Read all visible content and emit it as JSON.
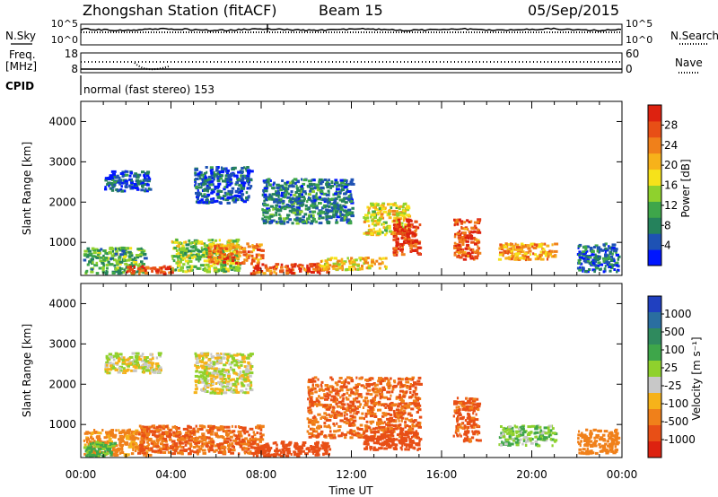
{
  "header": {
    "station": "Zhongshan Station (fitACF)",
    "beam": "Beam 15",
    "date": "05/Sep/2015"
  },
  "side_labels": {
    "nsky": "N.Sky",
    "nsearch": "N.Search",
    "freq": "Freq.",
    "freq_unit": "[MHz]",
    "nave": "Nave",
    "cpid": "CPID",
    "mode": "normal (fast stereo) 153"
  },
  "aux_ticks": {
    "noise_left": [
      "10^5",
      "10^0"
    ],
    "noise_right": [
      "10^5",
      "10^0"
    ],
    "freq_left": [
      "18",
      "8"
    ],
    "nave_right": [
      "60",
      "0"
    ]
  },
  "x_axis": {
    "label": "Time UT",
    "ticks": [
      "00:00",
      "04:00",
      "08:00",
      "12:00",
      "16:00",
      "20:00",
      "00:00"
    ]
  },
  "chart_data": [
    {
      "type": "heatmap",
      "quantity": "Power",
      "ylabel": "Slant Range [km]",
      "y_ticks": [
        "1000",
        "2000",
        "3000",
        "4000"
      ],
      "ylim": [
        180,
        4500
      ],
      "xlim_hours": [
        0,
        24
      ],
      "colorbar_label": "Power [dB]",
      "colorbar_ticks": [
        "4",
        "8",
        "12",
        "16",
        "20",
        "24",
        "28"
      ],
      "colorbar_colors": [
        "#0016ff",
        "#1e52b4",
        "#25825c",
        "#3ea64a",
        "#8fd12d",
        "#f6e21a",
        "#f7b21a",
        "#f0801a",
        "#e84f16",
        "#dd2210"
      ],
      "regions": [
        {
          "t": [
            0.1,
            2.8
          ],
          "r": [
            250,
            900
          ],
          "level": 0.35
        },
        {
          "t": [
            2.0,
            4.0
          ],
          "r": [
            250,
            450
          ],
          "level": 0.9
        },
        {
          "t": [
            4.0,
            7.0
          ],
          "r": [
            300,
            1100
          ],
          "level": 0.45
        },
        {
          "t": [
            5.6,
            8.0
          ],
          "r": [
            500,
            1000
          ],
          "level": 0.75
        },
        {
          "t": [
            7.5,
            11.0
          ],
          "r": [
            250,
            500
          ],
          "level": 0.85
        },
        {
          "t": [
            10.5,
            13.5
          ],
          "r": [
            350,
            650
          ],
          "level": 0.6
        },
        {
          "t": [
            12.5,
            14.5
          ],
          "r": [
            1200,
            2000
          ],
          "level": 0.55
        },
        {
          "t": [
            13.8,
            15.0
          ],
          "r": [
            700,
            1600
          ],
          "level": 0.9
        },
        {
          "t": [
            16.5,
            17.6
          ],
          "r": [
            600,
            1600
          ],
          "level": 0.85
        },
        {
          "t": [
            18.5,
            21.0
          ],
          "r": [
            600,
            1000
          ],
          "level": 0.7
        },
        {
          "t": [
            1.0,
            3.0
          ],
          "r": [
            2300,
            2800
          ],
          "level": 0.15
        },
        {
          "t": [
            5.0,
            7.5
          ],
          "r": [
            2000,
            2900
          ],
          "level": 0.15
        },
        {
          "t": [
            8.0,
            12.0
          ],
          "r": [
            1500,
            2600
          ],
          "level": 0.25
        },
        {
          "t": [
            22.0,
            23.8
          ],
          "r": [
            300,
            1000
          ],
          "level": 0.2
        }
      ]
    },
    {
      "type": "heatmap",
      "quantity": "Velocity",
      "ylabel": "Slant Range [km]",
      "y_ticks": [
        "1000",
        "2000",
        "3000",
        "4000"
      ],
      "ylim": [
        180,
        4500
      ],
      "xlim_hours": [
        0,
        24
      ],
      "colorbar_label": "Velocity [m s⁻¹]",
      "colorbar_ticks": [
        "1000",
        "500",
        "100",
        "25",
        "-25",
        "-100",
        "-500",
        "-1000"
      ],
      "colorbar_colors": [
        "#2040c0",
        "#2a6ea0",
        "#2f8a5e",
        "#3ea64a",
        "#8fd12d",
        "#c8c8c8",
        "#f6b21a",
        "#f0801a",
        "#e84f16",
        "#dd2210"
      ],
      "regions": [
        {
          "t": [
            0.1,
            3.0
          ],
          "r": [
            250,
            900
          ],
          "value": -150
        },
        {
          "t": [
            2.5,
            8.0
          ],
          "r": [
            300,
            1000
          ],
          "value": -300
        },
        {
          "t": [
            7.5,
            11.0
          ],
          "r": [
            250,
            600
          ],
          "value": -400
        },
        {
          "t": [
            10.0,
            15.0
          ],
          "r": [
            700,
            2200
          ],
          "value": -300
        },
        {
          "t": [
            12.5,
            15.0
          ],
          "r": [
            400,
            900
          ],
          "value": -400
        },
        {
          "t": [
            16.5,
            17.6
          ],
          "r": [
            600,
            1700
          ],
          "value": -350
        },
        {
          "t": [
            18.5,
            21.0
          ],
          "r": [
            500,
            1000
          ],
          "value": 80
        },
        {
          "t": [
            1.0,
            3.5
          ],
          "r": [
            2300,
            2800
          ],
          "value": 0
        },
        {
          "t": [
            5.0,
            7.5
          ],
          "r": [
            1800,
            2800
          ],
          "value": 0
        },
        {
          "t": [
            0.1,
            1.5
          ],
          "r": [
            250,
            600
          ],
          "value": 150
        },
        {
          "t": [
            22.0,
            23.8
          ],
          "r": [
            300,
            900
          ],
          "value": -200
        }
      ]
    }
  ]
}
